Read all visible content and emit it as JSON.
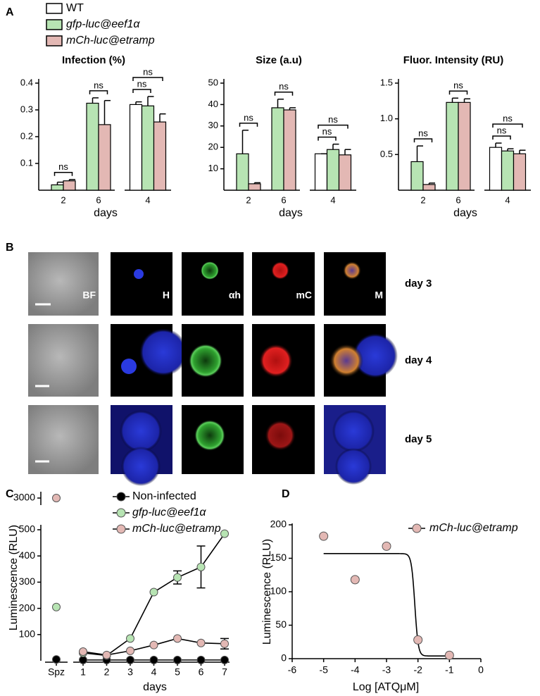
{
  "panel_labels": [
    "A",
    "B",
    "C",
    "D"
  ],
  "panel_a_legend": [
    {
      "name": "WT",
      "color": "#ffffff"
    },
    {
      "name": "gfp-luc@eef1α",
      "color": "#b7e4b3"
    },
    {
      "name": "mCh-luc@etramp",
      "color": "#e3b8b4"
    }
  ],
  "chart_data": [
    {
      "type": "bar",
      "title": "Infection (%)",
      "x_label": "days",
      "categories": [
        "2",
        "6",
        "4"
      ],
      "series": [
        {
          "color": "#ffffff",
          "values": [
            null,
            null,
            0.32
          ],
          "errors": [
            null,
            null,
            0.01
          ]
        },
        {
          "color": "#b7e4b3",
          "values": [
            0.02,
            0.325,
            0.315
          ],
          "errors": [
            0.01,
            0.02,
            0.035
          ]
        },
        {
          "color": "#e3b8b4",
          "values": [
            0.035,
            0.245,
            0.255
          ],
          "errors": [
            0.005,
            0.09,
            0.03
          ]
        }
      ],
      "ylim": [
        0,
        0.4
      ],
      "yticks": [
        0.1,
        0.2,
        0.3,
        0.4
      ],
      "annotations": [
        "ns",
        "ns",
        "ns",
        "ns"
      ]
    },
    {
      "type": "bar",
      "title": "Size (a.u)",
      "x_label": "days",
      "categories": [
        "2",
        "6",
        "4"
      ],
      "series": [
        {
          "color": "#ffffff",
          "values": [
            null,
            null,
            17
          ],
          "errors": [
            null,
            null,
            0
          ]
        },
        {
          "color": "#b7e4b3",
          "values": [
            17,
            38.5,
            19
          ],
          "errors": [
            11,
            4,
            2.5
          ]
        },
        {
          "color": "#e3b8b4",
          "values": [
            3,
            37.5,
            16.5
          ],
          "errors": [
            0.5,
            1,
            2.5
          ]
        }
      ],
      "ylim": [
        0,
        50
      ],
      "yticks": [
        10,
        20,
        30,
        40,
        50
      ],
      "annotations": [
        "ns",
        "ns",
        "ns",
        "ns"
      ]
    },
    {
      "type": "bar",
      "title": "Fluor. Intensity (RU)",
      "x_label": "days",
      "categories": [
        "2",
        "6",
        "4"
      ],
      "series": [
        {
          "color": "#ffffff",
          "values": [
            null,
            null,
            0.6
          ],
          "errors": [
            null,
            null,
            0.06
          ]
        },
        {
          "color": "#b7e4b3",
          "values": [
            0.4,
            1.23,
            0.55
          ],
          "errors": [
            0.22,
            0.06,
            0.03
          ]
        },
        {
          "color": "#e3b8b4",
          "values": [
            0.08,
            1.23,
            0.51
          ],
          "errors": [
            0.02,
            0.05,
            0.05
          ]
        }
      ],
      "ylim": [
        0,
        1.5
      ],
      "yticks": [
        0.5,
        {
          "value": 1,
          "label": "1.0"
        },
        1.5
      ],
      "annotations": [
        "ns",
        "ns",
        "ns",
        "ns"
      ]
    },
    {
      "type": "line",
      "x_label": "days",
      "y_label": "Luminescence (RLU)",
      "categories": [
        "Spz",
        "1",
        "2",
        "3",
        "4",
        "5",
        "6",
        "7"
      ],
      "series": [
        {
          "name": "Non-infected",
          "color": "#000000",
          "values": [
            5,
            3,
            3,
            3,
            3,
            3,
            3,
            3
          ],
          "errors": [
            null,
            null,
            null,
            null,
            null,
            null,
            null,
            null
          ]
        },
        {
          "name": "gfp-luc@eef1α",
          "color": "#b7e4b3",
          "values": [
            205,
            30,
            20,
            85,
            262,
            318,
            358,
            485
          ],
          "errors": [
            null,
            null,
            null,
            null,
            null,
            25,
            80,
            null
          ]
        },
        {
          "name": "mCh-luc@etramp",
          "color": "#e3b8b4",
          "values": [
            3000,
            35,
            22,
            38,
            60,
            85,
            68,
            65
          ],
          "errors": [
            null,
            null,
            null,
            null,
            null,
            null,
            null,
            20
          ]
        }
      ],
      "ylim": [
        0,
        3000
      ],
      "yticks": [
        100,
        200,
        300,
        400,
        500,
        3000
      ],
      "broken_axis": true
    },
    {
      "type": "scatter",
      "x_label": "Log [ATQμM]",
      "y_label": "Luminescence (RLU)",
      "series": [
        {
          "name": "mCh-luc@etramp",
          "color": "#e3b8b4",
          "x": [
            -5,
            -4,
            -3,
            -2,
            -1
          ],
          "values": [
            183,
            118,
            168,
            28,
            5
          ]
        }
      ],
      "fit": {
        "top": 157,
        "bottom": 4,
        "log_ic50": -2.1,
        "hill": 8
      },
      "xlim": [
        -6,
        0
      ],
      "xticks": [
        -6,
        -5,
        -4,
        -3,
        -2,
        -1,
        0
      ],
      "ylim": [
        0,
        200
      ],
      "yticks": [
        0,
        50,
        100,
        150,
        200
      ]
    }
  ],
  "image_grid": {
    "columns": [
      "BF",
      "H",
      "αh",
      "mC",
      "M"
    ],
    "rows": [
      "day 3",
      "day 4",
      "day 5"
    ]
  }
}
